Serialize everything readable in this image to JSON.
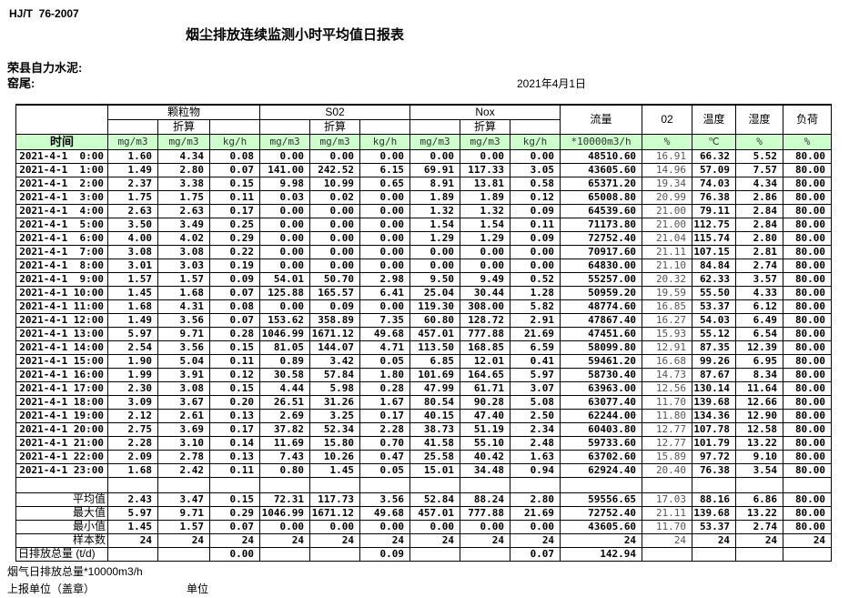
{
  "header": {
    "standard_code": "HJ/T  76-2007",
    "title": "烟尘排放连续监测小时平均值日报表",
    "company": "荣县自力水泥:",
    "location": "窑尾:",
    "date": "2021年4月1日"
  },
  "table": {
    "time_label": "时间",
    "converted_label": "折算",
    "groups": [
      {
        "label": "颗粒物"
      },
      {
        "label": "S02"
      },
      {
        "label": "Nox"
      }
    ],
    "flow_label": "流量",
    "o2_label": "02",
    "temp_label": "温度",
    "humidity_label": "湿度",
    "load_label": "负荷",
    "units": [
      "mg/m3",
      "mg/m3",
      "kg/h",
      "mg/m3",
      "mg/m3",
      "kg/h",
      "mg/m3",
      "mg/m3",
      "kg/h",
      "*10000m3/h",
      "%",
      "℃",
      "%",
      "%"
    ],
    "rows": [
      {
        "time": "2021-4-1  0:00",
        "values": [
          "1.60",
          "4.34",
          "0.08",
          "0.00",
          "0.00",
          "0.00",
          "0.00",
          "0.00",
          "0.00",
          "48510.60",
          "16.91",
          "66.32",
          "5.52",
          "80.00"
        ]
      },
      {
        "time": "2021-4-1  1:00",
        "values": [
          "1.49",
          "2.80",
          "0.07",
          "141.00",
          "242.52",
          "6.15",
          "69.91",
          "117.33",
          "3.05",
          "43605.60",
          "14.96",
          "57.09",
          "7.57",
          "80.00"
        ]
      },
      {
        "time": "2021-4-1  2:00",
        "values": [
          "2.37",
          "3.38",
          "0.15",
          "9.98",
          "10.99",
          "0.65",
          "8.91",
          "13.81",
          "0.58",
          "65371.20",
          "19.34",
          "74.03",
          "4.34",
          "80.00"
        ]
      },
      {
        "time": "2021-4-1  3:00",
        "values": [
          "1.75",
          "1.75",
          "0.11",
          "0.03",
          "0.02",
          "0.00",
          "1.89",
          "1.89",
          "0.12",
          "65008.80",
          "20.99",
          "76.38",
          "2.86",
          "80.00"
        ]
      },
      {
        "time": "2021-4-1  4:00",
        "values": [
          "2.63",
          "2.63",
          "0.17",
          "0.00",
          "0.00",
          "0.00",
          "1.32",
          "1.32",
          "0.09",
          "64539.60",
          "21.00",
          "79.11",
          "2.84",
          "80.00"
        ]
      },
      {
        "time": "2021-4-1  5:00",
        "values": [
          "3.50",
          "3.49",
          "0.25",
          "0.00",
          "0.00",
          "0.00",
          "1.54",
          "1.54",
          "0.11",
          "71173.80",
          "21.00",
          "112.75",
          "2.84",
          "80.00"
        ]
      },
      {
        "time": "2021-4-1  6:00",
        "values": [
          "4.00",
          "4.02",
          "0.29",
          "0.00",
          "0.00",
          "0.00",
          "1.29",
          "1.29",
          "0.09",
          "72752.40",
          "21.04",
          "115.74",
          "2.80",
          "80.00"
        ]
      },
      {
        "time": "2021-4-1  7:00",
        "values": [
          "3.08",
          "3.08",
          "0.22",
          "0.00",
          "0.00",
          "0.00",
          "0.00",
          "0.00",
          "0.00",
          "70917.60",
          "21.11",
          "107.15",
          "2.81",
          "80.00"
        ]
      },
      {
        "time": "2021-4-1  8:00",
        "values": [
          "3.01",
          "3.03",
          "0.19",
          "0.00",
          "0.00",
          "0.00",
          "0.00",
          "0.00",
          "0.00",
          "64830.00",
          "21.10",
          "84.84",
          "2.74",
          "80.00"
        ]
      },
      {
        "time": "2021-4-1  9:00",
        "values": [
          "1.57",
          "1.57",
          "0.09",
          "54.01",
          "50.70",
          "2.98",
          "9.50",
          "9.49",
          "0.52",
          "55257.00",
          "20.32",
          "62.33",
          "3.57",
          "80.00"
        ]
      },
      {
        "time": "2021-4-1 10:00",
        "values": [
          "1.45",
          "1.68",
          "0.07",
          "125.88",
          "165.57",
          "6.41",
          "25.04",
          "30.44",
          "1.28",
          "50959.20",
          "19.59",
          "55.50",
          "4.33",
          "80.00"
        ]
      },
      {
        "time": "2021-4-1 11:00",
        "values": [
          "1.68",
          "4.31",
          "0.08",
          "0.00",
          "0.09",
          "0.00",
          "119.30",
          "308.00",
          "5.82",
          "48774.60",
          "16.85",
          "53.37",
          "6.12",
          "80.00"
        ]
      },
      {
        "time": "2021-4-1 12:00",
        "values": [
          "1.49",
          "3.56",
          "0.07",
          "153.62",
          "358.89",
          "7.35",
          "60.80",
          "128.72",
          "2.91",
          "47867.40",
          "16.27",
          "54.03",
          "6.49",
          "80.00"
        ]
      },
      {
        "time": "2021-4-1 13:00",
        "values": [
          "5.97",
          "9.71",
          "0.28",
          "1046.99",
          "1671.12",
          "49.68",
          "457.01",
          "777.88",
          "21.69",
          "47451.60",
          "15.93",
          "55.12",
          "6.54",
          "80.00"
        ]
      },
      {
        "time": "2021-4-1 14:00",
        "values": [
          "2.54",
          "3.56",
          "0.15",
          "81.05",
          "144.07",
          "4.71",
          "113.50",
          "168.85",
          "6.59",
          "58099.80",
          "12.91",
          "87.35",
          "12.39",
          "80.00"
        ]
      },
      {
        "time": "2021-4-1 15:00",
        "values": [
          "1.90",
          "5.04",
          "0.11",
          "0.89",
          "3.42",
          "0.05",
          "6.85",
          "12.01",
          "0.41",
          "59461.20",
          "16.68",
          "99.26",
          "6.95",
          "80.00"
        ]
      },
      {
        "time": "2021-4-1 16:00",
        "values": [
          "1.99",
          "3.91",
          "0.12",
          "30.58",
          "57.84",
          "1.80",
          "101.69",
          "164.65",
          "5.97",
          "58730.40",
          "14.73",
          "87.67",
          "8.34",
          "80.00"
        ]
      },
      {
        "time": "2021-4-1 17:00",
        "values": [
          "2.30",
          "3.08",
          "0.15",
          "4.44",
          "5.98",
          "0.28",
          "47.99",
          "61.71",
          "3.07",
          "63963.00",
          "12.56",
          "130.14",
          "11.64",
          "80.00"
        ]
      },
      {
        "time": "2021-4-1 18:00",
        "values": [
          "3.09",
          "3.67",
          "0.20",
          "26.51",
          "31.26",
          "1.67",
          "80.54",
          "90.28",
          "5.08",
          "63077.40",
          "11.70",
          "139.68",
          "12.66",
          "80.00"
        ]
      },
      {
        "time": "2021-4-1 19:00",
        "values": [
          "2.12",
          "2.61",
          "0.13",
          "2.69",
          "3.25",
          "0.17",
          "40.15",
          "47.40",
          "2.50",
          "62244.00",
          "11.80",
          "134.36",
          "12.90",
          "80.00"
        ]
      },
      {
        "time": "2021-4-1 20:00",
        "values": [
          "2.75",
          "3.69",
          "0.17",
          "37.82",
          "52.34",
          "2.28",
          "38.73",
          "51.19",
          "2.34",
          "60403.80",
          "12.77",
          "107.78",
          "12.58",
          "80.00"
        ]
      },
      {
        "time": "2021-4-1 21:00",
        "values": [
          "2.28",
          "3.10",
          "0.14",
          "11.69",
          "15.80",
          "0.70",
          "41.58",
          "55.10",
          "2.48",
          "59733.60",
          "12.77",
          "101.79",
          "13.22",
          "80.00"
        ]
      },
      {
        "time": "2021-4-1 22:00",
        "values": [
          "2.09",
          "2.78",
          "0.13",
          "7.43",
          "10.26",
          "0.47",
          "25.58",
          "40.42",
          "1.63",
          "63702.60",
          "15.89",
          "97.72",
          "9.10",
          "80.00"
        ]
      },
      {
        "time": "2021-4-1 23:00",
        "values": [
          "1.68",
          "2.42",
          "0.11",
          "0.80",
          "1.45",
          "0.05",
          "15.01",
          "34.48",
          "0.94",
          "62924.40",
          "20.40",
          "76.38",
          "3.54",
          "80.00"
        ]
      }
    ],
    "summary": [
      {
        "label": "平均值",
        "values": [
          "2.43",
          "3.47",
          "0.15",
          "72.31",
          "117.73",
          "3.56",
          "52.84",
          "88.24",
          "2.80",
          "59556.65",
          "17.03",
          "88.16",
          "6.86",
          "80.00"
        ]
      },
      {
        "label": "最大值",
        "values": [
          "5.97",
          "9.71",
          "0.29",
          "1046.99",
          "1671.12",
          "49.68",
          "457.01",
          "777.88",
          "21.69",
          "72752.40",
          "21.11",
          "139.68",
          "13.22",
          "80.00"
        ]
      },
      {
        "label": "最小值",
        "values": [
          "1.45",
          "1.57",
          "0.07",
          "0.00",
          "0.00",
          "0.00",
          "0.00",
          "0.00",
          "0.00",
          "43605.60",
          "11.70",
          "53.37",
          "2.74",
          "80.00"
        ]
      },
      {
        "label": "样本数",
        "values": [
          "24",
          "24",
          "24",
          "24",
          "24",
          "24",
          "24",
          "24",
          "24",
          "24",
          "24",
          "24",
          "24",
          "24"
        ]
      }
    ],
    "daily_total": {
      "label": "日排放总量 (t/d)",
      "values": [
        "",
        "",
        "0.00",
        "",
        "",
        "0.09",
        "",
        "",
        "0.07",
        "142.94",
        "",
        "",
        "",
        ""
      ]
    }
  },
  "footer": {
    "flue_gas_total": "烟气日排放总量*10000m3/h",
    "reporting_unit": "上报单位（盖章）",
    "unit": "单位"
  },
  "colors": {
    "header_green": "#ccffcc",
    "border": "#000000"
  }
}
